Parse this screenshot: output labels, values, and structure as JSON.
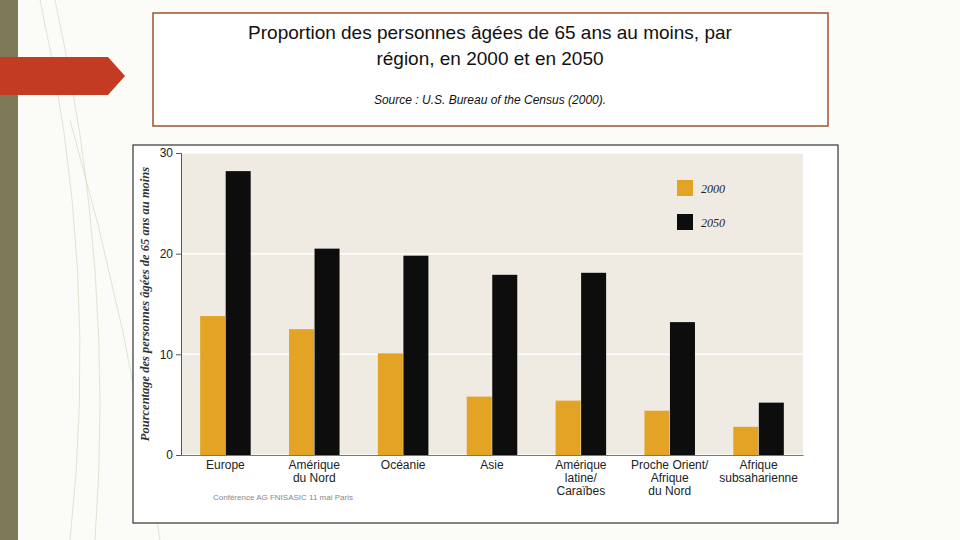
{
  "chart_data": {
    "type": "bar",
    "title": "Proportion des personnes âgées de 65 ans au moins, par\nrégion, en 2000 et en 2050",
    "subtitle": "Source : U.S. Bureau of the Census (2000).",
    "y_label": "Pourcentage des personnes âgées de 65 ans au moins",
    "annotations": [
      "Conférence AG FNISASIC 11 mai Paris"
    ],
    "categories": [
      "Europe",
      "Amérique\ndu Nord",
      "Océanie",
      "Asie",
      "Amérique\nlatine/\nCaraïbes",
      "Proche Orient/\nAfrique\ndu Nord",
      "Afrique\nsubsaharienne"
    ],
    "series": [
      {
        "name": "2000",
        "color": "#e3a324",
        "values": [
          13.8,
          12.5,
          10.1,
          5.8,
          5.4,
          4.4,
          2.8
        ]
      },
      {
        "name": "2050",
        "color": "#0d0d0d",
        "values": [
          28.2,
          20.5,
          19.8,
          17.9,
          18.1,
          13.2,
          5.2
        ]
      }
    ],
    "ylim": [
      0,
      30
    ],
    "yticks": [
      0,
      10,
      20,
      30
    ],
    "grid": true,
    "legend": "top-right"
  }
}
